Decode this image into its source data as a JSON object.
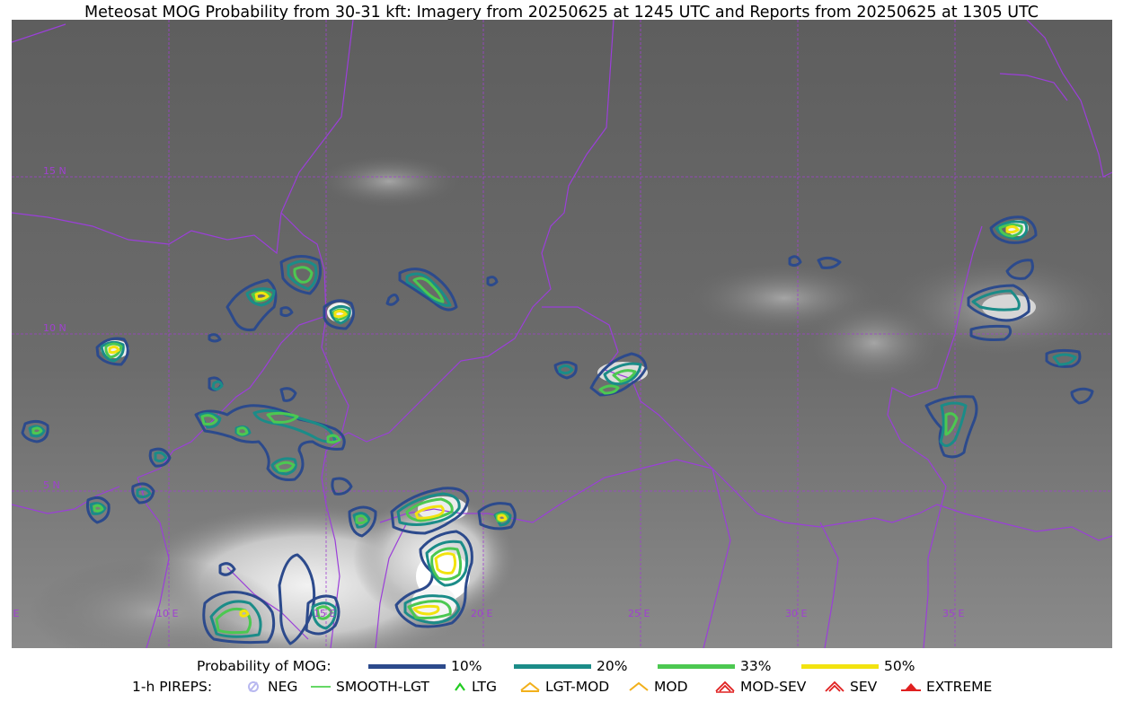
{
  "title": "Meteosat MOG Probability from 30-31 kft: Imagery from 20250625 at 1245 UTC and Reports from 20250625 at 1305 UTC",
  "map": {
    "lat_labels": [
      "15 N",
      "10 N",
      "5 N"
    ],
    "lon_labels": [
      "5 E",
      "10 E",
      "15 E",
      "20 E",
      "25 E",
      "30 E",
      "35 E"
    ],
    "grid_color": "#a040d0",
    "border_color": "#9b3fd9",
    "imagery": "infrared satellite",
    "contour_levels": [
      {
        "label": "10%",
        "color": "#2c4a8c"
      },
      {
        "label": "20%",
        "color": "#1b8c88"
      },
      {
        "label": "33%",
        "color": "#4cc851"
      },
      {
        "label": "50%",
        "color": "#f2e30f"
      }
    ]
  },
  "legend": {
    "probability_title": "Probability of MOG:",
    "probability_items": [
      {
        "label": "10%",
        "color": "#2c4a8c"
      },
      {
        "label": "20%",
        "color": "#1b8c88"
      },
      {
        "label": "33%",
        "color": "#4cc851"
      },
      {
        "label": "50%",
        "color": "#f2e30f"
      }
    ],
    "pireps_title": "1-h PIREPS:",
    "pireps_items": [
      {
        "label": "NEG",
        "icon": "neg-icon",
        "color": "#b8b8f0"
      },
      {
        "label": "SMOOTH-LGT",
        "icon": "smooth-lgt-icon",
        "color": "#33cc33"
      },
      {
        "label": "LTG",
        "icon": "ltg-icon",
        "color": "#22cc22"
      },
      {
        "label": "LGT-MOD",
        "icon": "lgt-mod-icon",
        "color": "#f2b01b"
      },
      {
        "label": "MOD",
        "icon": "mod-icon",
        "color": "#f2b01b"
      },
      {
        "label": "MOD-SEV",
        "icon": "mod-sev-icon",
        "color": "#e02020"
      },
      {
        "label": "SEV",
        "icon": "sev-icon",
        "color": "#e02020"
      },
      {
        "label": "EXTREME",
        "icon": "extreme-icon",
        "color": "#e02020"
      }
    ]
  }
}
